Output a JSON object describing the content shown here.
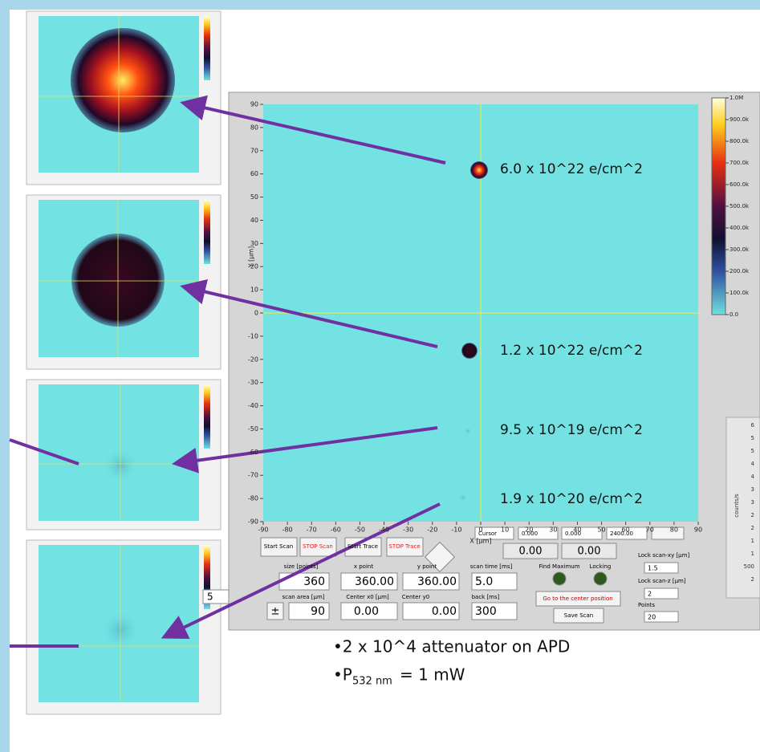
{
  "scan_plot": {
    "x_label": "X [µm]",
    "y_label": "Y [µm]",
    "xlim": [
      -90,
      90
    ],
    "ylim": [
      -90,
      90
    ],
    "xticks": [
      -90,
      -80,
      -70,
      -60,
      -50,
      -40,
      -30,
      -20,
      -10,
      0,
      10,
      20,
      30,
      40,
      50,
      60,
      70,
      80,
      90
    ],
    "yticks": [
      -90,
      -80,
      -70,
      -60,
      -50,
      -40,
      -30,
      -20,
      -10,
      0,
      10,
      20,
      30,
      40,
      50,
      60,
      70,
      80,
      90
    ]
  },
  "colorbar": {
    "lim": [
      0,
      1000000
    ],
    "ticks": [
      {
        "value": 1000000,
        "label": "1.0M"
      },
      {
        "value": 900000,
        "label": "900.0k"
      },
      {
        "value": 800000,
        "label": "800.0k"
      },
      {
        "value": 700000,
        "label": "700.0k"
      },
      {
        "value": 600000,
        "label": "600.0k"
      },
      {
        "value": 500000,
        "label": "500.0k"
      },
      {
        "value": 400000,
        "label": "400.0k"
      },
      {
        "value": 300000,
        "label": "300.0k"
      },
      {
        "value": 200000,
        "label": "200.0k"
      },
      {
        "value": 100000,
        "label": "100.0k"
      },
      {
        "value": 0,
        "label": "0.0"
      }
    ]
  },
  "annotations": [
    "6.0 x 10^22 e/cm^2",
    "1.2 x 10^22 e/cm^2",
    "9.5 x 10^19 e/cm^2",
    "1.9 x 10^20 e/cm^2"
  ],
  "controls": {
    "start_scan": "Start Scan",
    "stop_scan": "STOP Scan",
    "start_trace": "Start Trace",
    "stop_trace": "STOP Trace",
    "cursor": {
      "label": "Cursor",
      "x": "0.000",
      "y": "0.000",
      "z": "2400.00"
    },
    "readouts": [
      "0.00",
      "0.00"
    ],
    "size_label": "size [points]",
    "size": "360",
    "x_point_label": "x point",
    "x_point": "360.00",
    "y_point_label": "y point",
    "y_point": "360.00",
    "scan_time_label": "scan time [ms]",
    "scan_time": "5.0",
    "back_label": "back [ms]",
    "back": "300",
    "scan_area_label": "scan area [µm]",
    "pm": "±",
    "scan_area": "90",
    "center_x0_label": "Center x0 [µm]",
    "center_x0": "0.00",
    "center_y0_label": "Center y0",
    "center_y0": "0.00",
    "find_maximum": "Find Maximum",
    "locking": "Locking",
    "go_center": "Go to the center position",
    "save_scan": "Save Scan",
    "lock_xy_label": "Lock scan-xy [µm]",
    "lock_xy": "1.5",
    "lock_z_label": "Lock scan-z [µm]",
    "lock_z": "2",
    "points_label": "Points",
    "points": "20",
    "side_value": "5"
  },
  "side_scale": {
    "label": "counts/s",
    "ticks": [
      "6",
      "5",
      "5",
      "4",
      "4",
      "3",
      "3",
      "2",
      "2",
      "1",
      "1",
      "500",
      "2"
    ]
  },
  "notes": {
    "line1": "•2 x 10^4 attenuator on APD",
    "line2_prefix": "•P",
    "line2_subscript": "532 nm",
    "line2_suffix": "= 1 mW"
  }
}
